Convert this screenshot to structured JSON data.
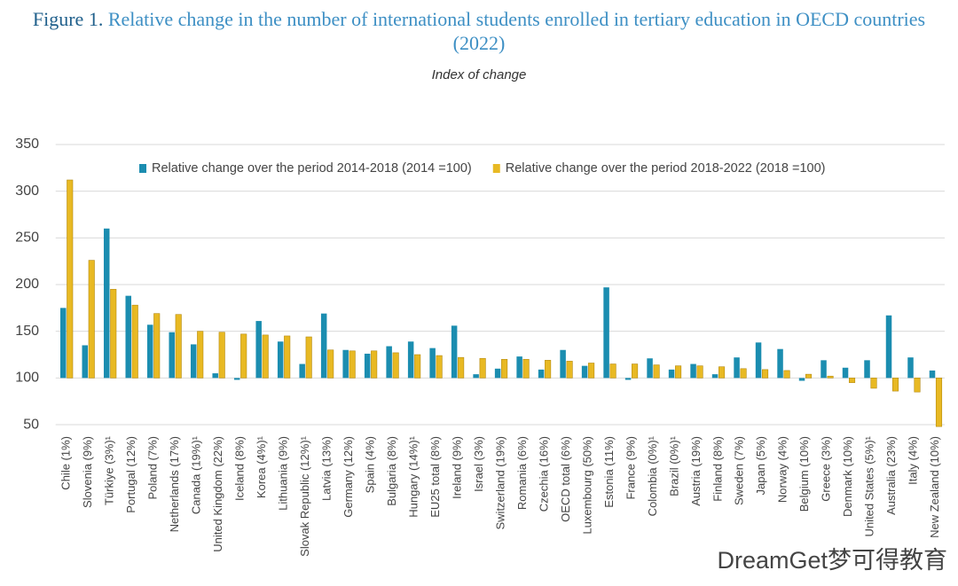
{
  "chart_data": {
    "type": "bar",
    "title_prefix": "Figure 1.",
    "title": "Relative change in the number of international students enrolled in tertiary education in OECD countries (2022)",
    "subtitle": "Index of change",
    "categories": [
      "Chile (1%)",
      "Slovenia (9%)",
      "Türkiye (3%)¹",
      "Portugal (12%)",
      "Poland (7%)",
      "Netherlands (17%)",
      "Canada (19%)¹",
      "United Kingdom (22%)",
      "Iceland (8%)",
      "Korea (4%)¹",
      "Lithuania (9%)",
      "Slovak Republic (12%)¹",
      "Latvia (13%)",
      "Germany (12%)",
      "Spain (4%)",
      "Bulgaria (8%)",
      "Hungary (14%)¹",
      "EU25 total (8%)",
      "Ireland (9%)",
      "Israel (3%)",
      "Switzerland (19%)",
      "Romania (6%)",
      "Czechia (16%)",
      "OECD total (6%)",
      "Luxembourg (50%)",
      "Estonia (11%)",
      "France (9%)",
      "Colombia (0%)¹",
      "Brazil (0%)¹",
      "Austria (19%)",
      "Finland (8%)",
      "Sweden (7%)",
      "Japan (5%)",
      "Norway (4%)",
      "Belgium (10%)",
      "Greece (3%)",
      "Denmark (10%)",
      "United States (5%)¹",
      "Australia (23%)",
      "Italy (4%)",
      "New Zealand (10%)"
    ],
    "series": [
      {
        "name": "Relative change over the period 2014-2018 (2014 =100)",
        "color": "#1b8db0",
        "values": [
          175,
          135,
          260,
          188,
          157,
          149,
          136,
          105,
          98,
          161,
          139,
          115,
          169,
          130,
          126,
          134,
          139,
          132,
          156,
          104,
          110,
          123,
          109,
          130,
          113,
          197,
          98,
          121,
          109,
          115,
          104,
          122,
          138,
          131,
          97,
          119,
          111,
          119,
          167,
          122,
          108
        ]
      },
      {
        "name": "Relative change over the period 2018-2022 (2018 =100)",
        "color": "#e8b923",
        "values": [
          312,
          226,
          195,
          178,
          169,
          168,
          150,
          149,
          147,
          146,
          145,
          144,
          130,
          129,
          129,
          127,
          125,
          124,
          122,
          121,
          120,
          120,
          119,
          118,
          116,
          115,
          115,
          114,
          113,
          113,
          112,
          110,
          109,
          108,
          104,
          102,
          95,
          89,
          86,
          85,
          48
        ]
      }
    ],
    "bar_baseline": 100,
    "ylim": [
      45,
      355
    ],
    "yticks": [
      50,
      100,
      150,
      200,
      250,
      300,
      350
    ],
    "grid": true,
    "legend": "top",
    "watermark": "DreamGet梦可得教育"
  }
}
